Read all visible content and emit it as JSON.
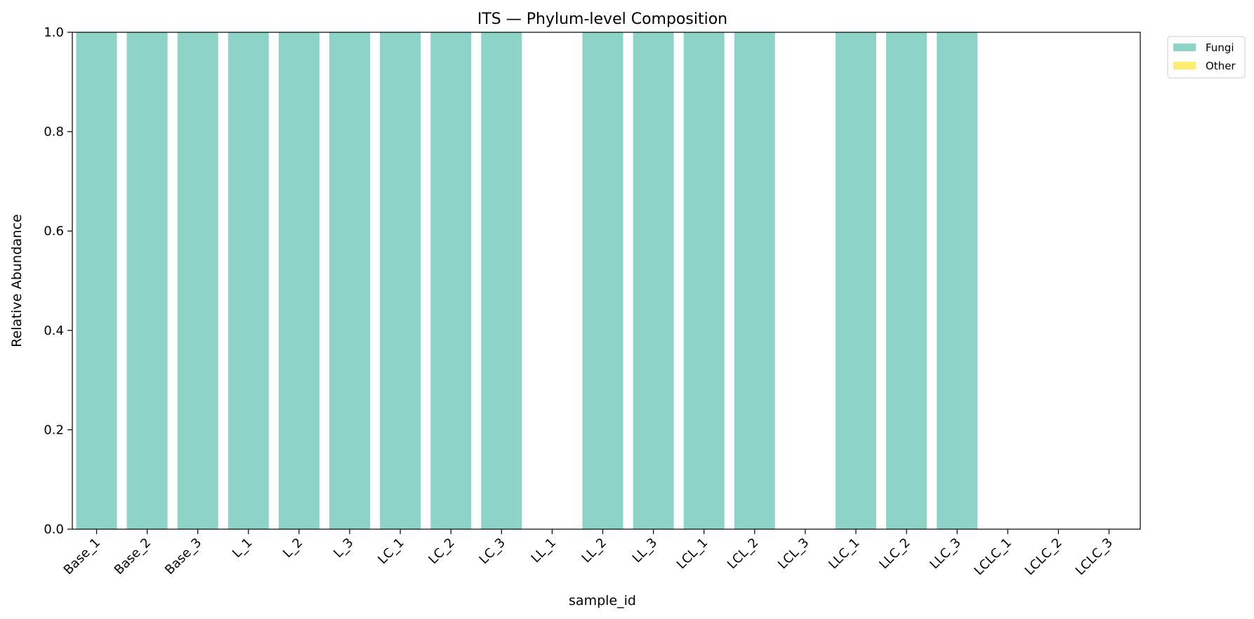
{
  "chart_data": {
    "type": "bar",
    "stacked": true,
    "title": "ITS — Phylum-level Composition",
    "xlabel": "sample_id",
    "ylabel": "Relative Abundance",
    "ylim": [
      0,
      1
    ],
    "yticks": [
      "0.0",
      "0.2",
      "0.4",
      "0.6",
      "0.8",
      "1.0"
    ],
    "categories": [
      "Base_1",
      "Base_2",
      "Base_3",
      "L_1",
      "L_2",
      "L_3",
      "LC_1",
      "LC_2",
      "LC_3",
      "LL_1",
      "LL_2",
      "LL_3",
      "LCL_1",
      "LCL_2",
      "LCL_3",
      "LLC_1",
      "LLC_2",
      "LLC_3",
      "LCLC_1",
      "LCLC_2",
      "LCLC_3"
    ],
    "series": [
      {
        "name": "Fungi",
        "color": "#8dd3c7",
        "values": [
          1,
          1,
          1,
          1,
          1,
          1,
          1,
          1,
          1,
          0,
          1,
          1,
          1,
          1,
          0,
          1,
          1,
          1,
          0,
          0,
          0
        ]
      },
      {
        "name": "Other",
        "color": "#ffed6f",
        "values": [
          0,
          0,
          0,
          0,
          0,
          0,
          0,
          0,
          0,
          0,
          0,
          0,
          0,
          0,
          0,
          0,
          0,
          0,
          0,
          0,
          0
        ]
      }
    ],
    "grid": false,
    "legend_position": "outside-top-right"
  }
}
